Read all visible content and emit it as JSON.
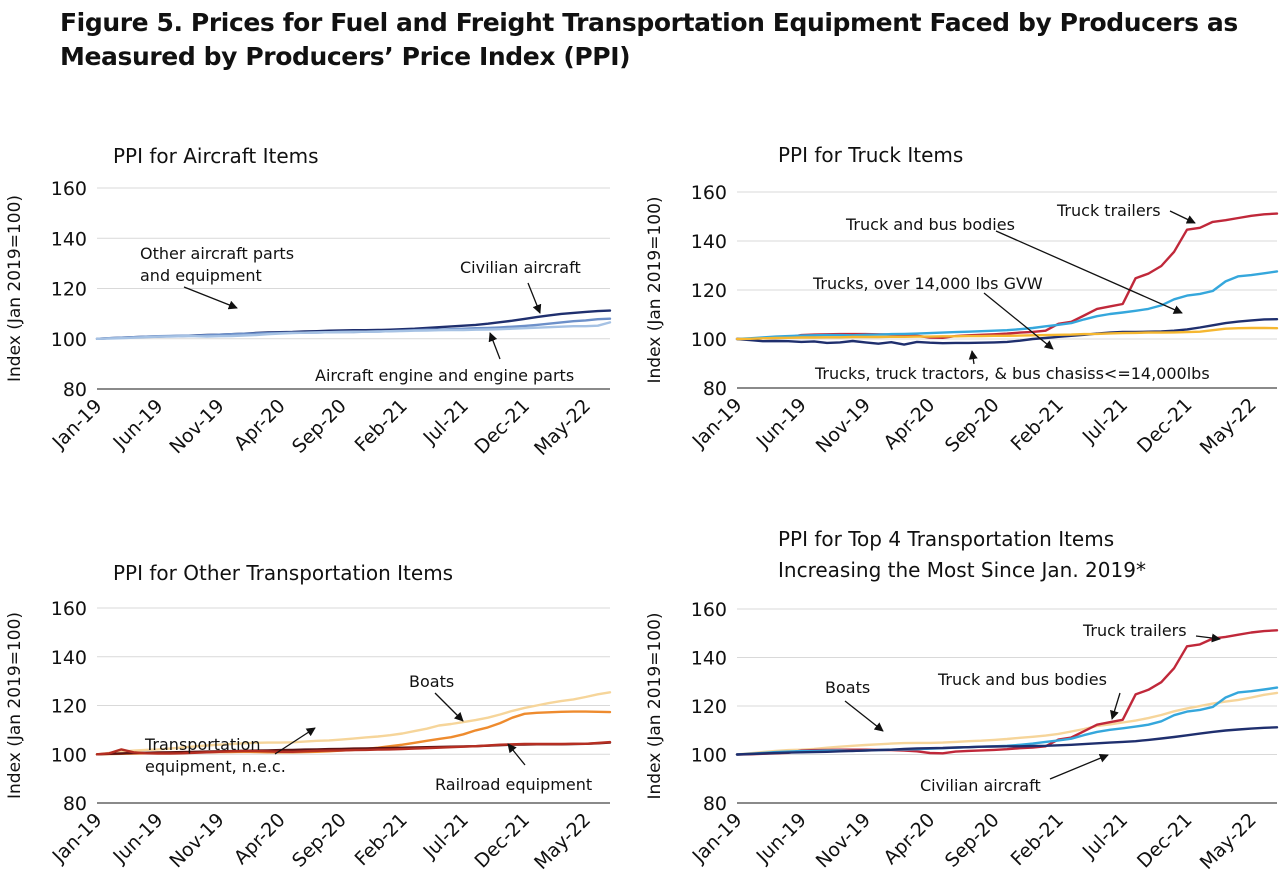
{
  "figure_title_line1": "Figure 5. Prices for Fuel and Freight Transportation Equipment Faced by Producers as",
  "figure_title_line2": "Measured by Producers’ Price Index (PPI)",
  "colors": {
    "navy": "#1f2f6e",
    "blue_mid": "#6d90c9",
    "blue_light": "#a6c2e4",
    "red": "#c0283a",
    "sky": "#35a7dc",
    "gold": "#f5b731",
    "peach": "#f6d59a",
    "orange": "#ee8b2e",
    "darkred": "#b52e22",
    "axis": "#444444",
    "grid": "#d9d9d9"
  },
  "chart_data": [
    {
      "type": "line",
      "title": "PPI for Aircraft Items",
      "title_lines": [
        "PPI for Aircraft Items"
      ],
      "ylabel": "Index (Jan 2019=100)",
      "ylim": [
        80,
        160
      ],
      "yticks": [
        80,
        100,
        120,
        140,
        160
      ],
      "x_tick_labels": [
        "Jan-19",
        "Jun-19",
        "Nov-19",
        "Apr-20",
        "Sep-20",
        "Feb-21",
        "Jul-21",
        "Dec-21",
        "May-22"
      ],
      "x_start": "Jan-19",
      "x_end": "Jul-22",
      "grid": true,
      "series": [
        {
          "color": "#1f2f6e",
          "values": [
            100.0,
            100.2,
            100.4,
            100.6,
            100.8,
            100.9,
            101.0,
            101.1,
            101.3,
            101.5,
            101.6,
            101.8,
            102.0,
            102.3,
            102.5,
            102.6,
            102.7,
            102.9,
            103.0,
            103.2,
            103.3,
            103.4,
            103.4,
            103.5,
            103.6,
            103.8,
            104.0,
            104.3,
            104.6,
            104.9,
            105.2,
            105.5,
            106.0,
            106.6,
            107.2,
            107.9,
            108.6,
            109.3,
            109.9,
            110.3,
            110.7,
            111.0,
            111.2
          ]
        },
        {
          "color": "#6d90c9",
          "values": [
            100.0,
            100.2,
            100.4,
            100.6,
            100.8,
            101.0,
            101.1,
            101.2,
            101.2,
            101.4,
            101.6,
            101.8,
            102.0,
            102.1,
            102.2,
            102.3,
            102.4,
            102.4,
            102.5,
            102.6,
            102.7,
            102.7,
            102.8,
            102.9,
            103.0,
            103.2,
            103.4,
            103.6,
            103.6,
            103.8,
            104.0,
            104.2,
            104.3,
            104.5,
            104.8,
            105.1,
            105.5,
            106.0,
            106.5,
            107.0,
            107.3,
            107.8,
            108.0
          ]
        },
        {
          "color": "#a6c2e4",
          "values": [
            100.0,
            100.1,
            100.2,
            100.4,
            100.6,
            100.8,
            100.9,
            101.0,
            101.0,
            100.9,
            101.0,
            101.1,
            101.3,
            101.5,
            101.8,
            102.1,
            102.3,
            102.4,
            102.5,
            102.6,
            102.7,
            102.8,
            102.8,
            102.9,
            103.0,
            103.1,
            103.2,
            103.3,
            103.4,
            103.5,
            103.5,
            103.6,
            103.7,
            103.8,
            104.0,
            104.2,
            104.4,
            104.6,
            104.8,
            105.0,
            105.0,
            105.2,
            106.5
          ]
        }
      ],
      "annotations": [
        {
          "lines": [
            "Other aircraft parts",
            "and equipment"
          ]
        },
        {
          "lines": [
            "Civilian aircraft"
          ]
        },
        {
          "lines": [
            "Aircraft engine and engine parts"
          ]
        }
      ]
    },
    {
      "type": "line",
      "title": "PPI for Truck Items",
      "title_lines": [
        "PPI for Truck Items"
      ],
      "ylabel": "Index (Jan 2019=100)",
      "ylim": [
        80,
        160
      ],
      "yticks": [
        80,
        100,
        120,
        140,
        160
      ],
      "x_tick_labels": [
        "Jan-19",
        "Jun-19",
        "Nov-19",
        "Apr-20",
        "Sep-20",
        "Feb-21",
        "Jul-21",
        "Dec-21",
        "May-22"
      ],
      "x_start": "Jan-19",
      "x_end": "Jul-22",
      "grid": true,
      "series": [
        {
          "color": "#c0283a",
          "values": [
            100.0,
            100.1,
            100.3,
            100.5,
            100.7,
            101.6,
            101.8,
            101.9,
            102.0,
            102.0,
            102.0,
            101.9,
            101.8,
            101.6,
            101.3,
            100.6,
            100.5,
            101.2,
            101.5,
            101.7,
            101.9,
            102.2,
            102.6,
            102.9,
            103.4,
            106.2,
            107.0,
            109.6,
            112.3,
            113.3,
            114.3,
            124.8,
            126.7,
            129.8,
            135.6,
            144.6,
            145.4,
            147.8,
            148.5,
            149.4,
            150.3,
            150.9,
            151.2
          ]
        },
        {
          "color": "#35a7dc",
          "values": [
            100.0,
            100.3,
            100.6,
            101.0,
            101.2,
            101.4,
            101.5,
            101.6,
            101.6,
            101.5,
            101.7,
            101.8,
            102.0,
            102.1,
            102.2,
            102.4,
            102.6,
            102.8,
            103.0,
            103.2,
            103.4,
            103.6,
            104.0,
            104.5,
            105.2,
            105.8,
            106.5,
            108.0,
            109.3,
            110.2,
            110.8,
            111.5,
            112.3,
            113.7,
            116.2,
            117.7,
            118.4,
            119.6,
            123.5,
            125.6,
            126.1,
            126.8,
            127.6
          ]
        },
        {
          "color": "#1f2f6e",
          "values": [
            100.0,
            99.6,
            99.1,
            99.2,
            99.1,
            98.8,
            99.0,
            98.4,
            98.6,
            99.2,
            98.6,
            98.1,
            98.7,
            97.7,
            98.8,
            98.5,
            98.3,
            98.4,
            98.4,
            98.5,
            98.6,
            98.8,
            99.3,
            100.0,
            100.4,
            100.9,
            101.3,
            101.7,
            102.2,
            102.6,
            102.9,
            102.9,
            103.0,
            103.1,
            103.4,
            103.9,
            104.7,
            105.6,
            106.5,
            107.1,
            107.6,
            108.0,
            108.1
          ]
        },
        {
          "color": "#f5b731",
          "values": [
            100.0,
            100.1,
            100.3,
            100.4,
            100.5,
            100.6,
            100.6,
            100.7,
            100.7,
            100.8,
            100.8,
            100.8,
            100.9,
            100.9,
            101.0,
            101.0,
            101.1,
            101.1,
            101.2,
            101.2,
            101.3,
            101.3,
            101.4,
            101.5,
            101.6,
            101.7,
            101.8,
            102.0,
            102.1,
            102.3,
            102.4,
            102.5,
            102.6,
            102.6,
            102.7,
            102.8,
            103.0,
            103.6,
            104.2,
            104.4,
            104.5,
            104.5,
            104.4
          ]
        }
      ],
      "annotations": [
        {
          "lines": [
            "Truck trailers"
          ]
        },
        {
          "lines": [
            "Truck and bus bodies"
          ]
        },
        {
          "lines": [
            "Trucks, over 14,000 lbs GVW"
          ]
        },
        {
          "lines": [
            "Trucks, truck tractors, & bus chasiss<=14,000lbs"
          ]
        }
      ]
    },
    {
      "type": "line",
      "title": "PPI for Other Transportation Items",
      "title_lines": [
        "PPI for Other Transportation Items"
      ],
      "ylabel": "Index (Jan 2019=100)",
      "ylim": [
        80,
        160
      ],
      "yticks": [
        80,
        100,
        120,
        140,
        160
      ],
      "x_tick_labels": [
        "Jan-19",
        "Jun-19",
        "Nov-19",
        "Apr-20",
        "Sep-20",
        "Feb-21",
        "Jul-21",
        "Dec-21",
        "May-22"
      ],
      "x_start": "Jan-19",
      "x_end": "Jul-22",
      "grid": true,
      "series": [
        {
          "color": "#f6d59a",
          "values": [
            100.0,
            100.5,
            101.0,
            101.5,
            101.8,
            102.0,
            102.3,
            102.8,
            103.2,
            103.6,
            103.9,
            104.2,
            104.5,
            104.7,
            104.8,
            104.8,
            104.9,
            105.2,
            105.5,
            105.7,
            106.0,
            106.4,
            106.9,
            107.3,
            107.8,
            108.5,
            109.5,
            110.5,
            111.8,
            112.4,
            113.2,
            114.0,
            115.0,
            116.3,
            117.8,
            119.0,
            120.0,
            121.0,
            121.8,
            122.5,
            123.5,
            124.6,
            125.4
          ]
        },
        {
          "color": "#ee8b2e",
          "values": [
            100.0,
            100.1,
            100.2,
            100.3,
            100.4,
            100.5,
            100.6,
            100.7,
            100.8,
            100.8,
            100.9,
            100.9,
            101.0,
            100.9,
            100.8,
            100.8,
            100.8,
            100.9,
            101.0,
            101.2,
            101.5,
            101.8,
            102.2,
            102.7,
            103.3,
            103.9,
            104.7,
            105.5,
            106.3,
            107.0,
            108.2,
            109.8,
            111.0,
            112.8,
            115.0,
            116.6,
            117.0,
            117.2,
            117.4,
            117.5,
            117.5,
            117.4,
            117.3
          ]
        },
        {
          "color": "#5c1414",
          "values": [
            100.0,
            100.2,
            100.3,
            100.5,
            100.6,
            100.7,
            100.8,
            100.9,
            101.0,
            101.1,
            101.2,
            101.3,
            101.4,
            101.5,
            101.6,
            101.7,
            101.8,
            101.9,
            102.0,
            102.1,
            102.2,
            102.3,
            102.4,
            102.5,
            102.6,
            102.7,
            102.8,
            102.9,
            103.0,
            103.1,
            103.2,
            103.3,
            103.5,
            103.7,
            103.9,
            104.0,
            104.1,
            104.1,
            104.1,
            104.2,
            104.3,
            104.5,
            104.8
          ]
        },
        {
          "color": "#b52e22",
          "values": [
            100.0,
            100.4,
            102.0,
            100.8,
            100.4,
            100.3,
            100.3,
            100.4,
            100.6,
            100.8,
            101.0,
            101.2,
            101.3,
            101.3,
            101.2,
            101.0,
            101.0,
            101.2,
            101.4,
            101.5,
            101.6,
            101.7,
            101.8,
            101.9,
            102.0,
            102.1,
            102.3,
            102.5,
            102.7,
            102.9,
            103.1,
            103.3,
            103.6,
            103.9,
            104.1,
            104.2,
            104.2,
            104.2,
            104.2,
            104.3,
            104.3,
            104.6,
            105.0
          ]
        }
      ],
      "annotations": [
        {
          "lines": [
            "Boats"
          ]
        },
        {
          "lines": [
            "Transportation",
            "equipment, n.e.c."
          ]
        },
        {
          "lines": [
            "Railroad equipment"
          ]
        }
      ]
    },
    {
      "type": "line",
      "title": "PPI for Top 4 Transportation Items Increasing the Most Since Jan. 2019*",
      "title_lines": [
        "PPI for Top 4 Transportation Items",
        "Increasing the Most Since Jan. 2019*"
      ],
      "ylabel": "Index (Jan 2019=100)",
      "ylim": [
        80,
        160
      ],
      "yticks": [
        80,
        100,
        120,
        140,
        160
      ],
      "x_tick_labels": [
        "Jan-19",
        "Jun-19",
        "Nov-19",
        "Apr-20",
        "Sep-20",
        "Feb-21",
        "Jul-21",
        "Dec-21",
        "May-22"
      ],
      "x_start": "Jan-19",
      "x_end": "Jul-22",
      "grid": true,
      "series": [
        {
          "color": "#f6d59a",
          "values": [
            100.0,
            100.5,
            101.0,
            101.5,
            101.8,
            102.0,
            102.3,
            102.8,
            103.2,
            103.6,
            103.9,
            104.2,
            104.5,
            104.7,
            104.8,
            104.8,
            104.9,
            105.2,
            105.5,
            105.7,
            106.0,
            106.4,
            106.9,
            107.3,
            107.8,
            108.5,
            109.5,
            110.5,
            111.8,
            112.4,
            113.2,
            114.0,
            115.0,
            116.3,
            117.8,
            119.0,
            120.0,
            121.0,
            121.8,
            122.5,
            123.5,
            124.6,
            125.4
          ]
        },
        {
          "color": "#c0283a",
          "values": [
            100.0,
            100.1,
            100.3,
            100.5,
            100.7,
            101.6,
            101.8,
            101.9,
            102.0,
            102.0,
            102.0,
            101.9,
            101.8,
            101.6,
            101.3,
            100.6,
            100.5,
            101.2,
            101.5,
            101.7,
            101.9,
            102.2,
            102.6,
            102.9,
            103.4,
            106.2,
            107.0,
            109.6,
            112.3,
            113.3,
            114.3,
            124.8,
            126.7,
            129.8,
            135.6,
            144.6,
            145.4,
            147.8,
            148.5,
            149.4,
            150.3,
            150.9,
            151.2
          ]
        },
        {
          "color": "#35a7dc",
          "values": [
            100.0,
            100.3,
            100.6,
            101.0,
            101.2,
            101.4,
            101.5,
            101.6,
            101.6,
            101.5,
            101.7,
            101.8,
            102.0,
            102.1,
            102.2,
            102.4,
            102.6,
            102.8,
            103.0,
            103.2,
            103.4,
            103.6,
            104.0,
            104.5,
            105.2,
            105.8,
            106.5,
            108.0,
            109.3,
            110.2,
            110.8,
            111.5,
            112.3,
            113.7,
            116.2,
            117.7,
            118.4,
            119.6,
            123.5,
            125.6,
            126.1,
            126.8,
            127.6
          ]
        },
        {
          "color": "#1f2f6e",
          "values": [
            100.0,
            100.2,
            100.4,
            100.6,
            100.8,
            100.9,
            101.0,
            101.1,
            101.3,
            101.5,
            101.6,
            101.8,
            102.0,
            102.3,
            102.5,
            102.6,
            102.7,
            102.9,
            103.0,
            103.2,
            103.3,
            103.4,
            103.4,
            103.5,
            103.6,
            103.8,
            104.0,
            104.3,
            104.6,
            104.9,
            105.2,
            105.5,
            106.0,
            106.6,
            107.2,
            107.9,
            108.6,
            109.3,
            109.9,
            110.3,
            110.7,
            111.0,
            111.2
          ]
        }
      ],
      "annotations": [
        {
          "lines": [
            "Truck trailers"
          ]
        },
        {
          "lines": [
            "Boats"
          ]
        },
        {
          "lines": [
            "Truck and bus bodies"
          ]
        },
        {
          "lines": [
            "Civilian aircraft"
          ]
        }
      ]
    }
  ]
}
